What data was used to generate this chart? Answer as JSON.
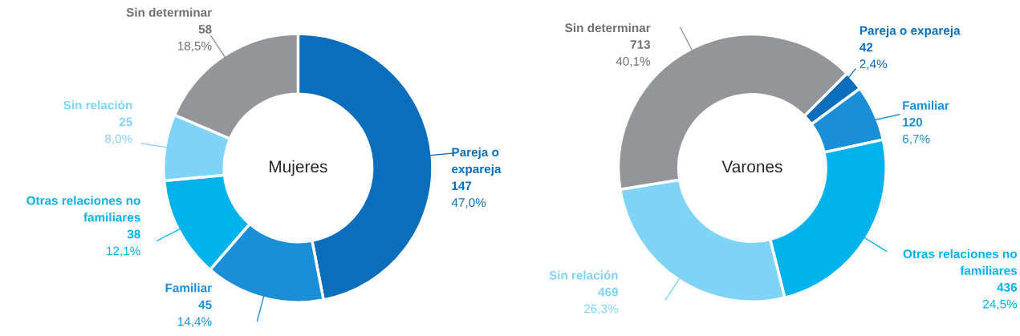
{
  "chart_data": [
    {
      "type": "donut",
      "title": "Mujeres",
      "categories": [
        "Pareja o\nexpareja",
        "Familiar",
        "Otras relaciones no\nfamiliares",
        "Sin relación",
        "Sin determinar"
      ],
      "values": [
        147,
        45,
        38,
        25,
        58
      ],
      "colors": [
        "#0a6ebd",
        "#1a8fd8",
        "#00b2ec",
        "#7fd3f7",
        "#939598"
      ],
      "value_labels": [
        "147\n47,0%",
        "45\n14,4%",
        "38\n12,1%",
        "25\n8,0%",
        "58\n18,5%"
      ]
    },
    {
      "type": "donut",
      "title": "Varones",
      "categories": [
        "Pareja o expareja",
        "Familiar",
        "Otras relaciones no\nfamiliares",
        "Sin relación",
        "Sin determinar"
      ],
      "values": [
        42,
        120,
        436,
        469,
        713
      ],
      "colors": [
        "#0a6ebd",
        "#1a8fd8",
        "#00b2ec",
        "#7fd3f7",
        "#939598"
      ],
      "value_labels": [
        "42\n2,4%",
        "120\n6,7%",
        "436\n24,5%",
        "469\n26,3%",
        "713\n40,1%"
      ]
    }
  ]
}
